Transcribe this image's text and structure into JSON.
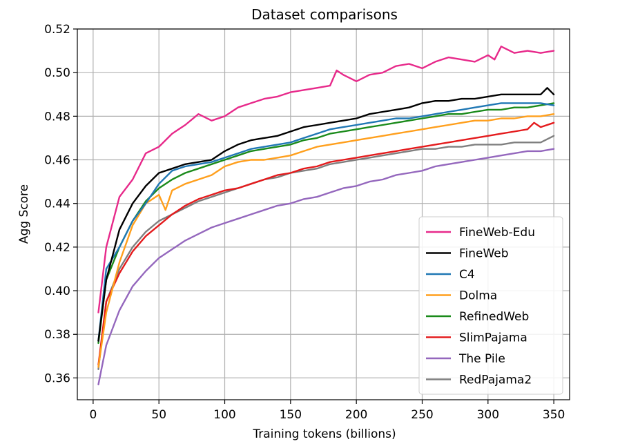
{
  "chart_data": {
    "type": "line",
    "title": "Dataset comparisons",
    "xlabel": "Training tokens (billions)",
    "ylabel": "Agg Score",
    "xlim": [
      -12,
      362
    ],
    "ylim": [
      0.35,
      0.52
    ],
    "xticks": [
      "0",
      "50",
      "100",
      "150",
      "200",
      "250",
      "300",
      "350"
    ],
    "xtick_values": [
      0,
      50,
      100,
      150,
      200,
      250,
      300,
      350
    ],
    "yticks": [
      "0.36",
      "0.38",
      "0.40",
      "0.42",
      "0.44",
      "0.46",
      "0.48",
      "0.50",
      "0.52"
    ],
    "ytick_values": [
      0.36,
      0.38,
      0.4,
      0.42,
      0.44,
      0.46,
      0.48,
      0.5,
      0.52
    ],
    "grid": true,
    "legend_position": "lower-right",
    "series": [
      {
        "name": "FineWeb-Edu",
        "color": "#e7298a",
        "x": [
          4,
          10,
          20,
          30,
          40,
          50,
          60,
          70,
          80,
          90,
          100,
          110,
          120,
          130,
          140,
          150,
          160,
          170,
          180,
          185,
          190,
          200,
          210,
          220,
          230,
          240,
          250,
          260,
          270,
          280,
          290,
          300,
          305,
          310,
          320,
          330,
          340,
          350
        ],
        "y": [
          0.39,
          0.42,
          0.443,
          0.451,
          0.463,
          0.466,
          0.472,
          0.476,
          0.481,
          0.478,
          0.48,
          0.484,
          0.486,
          0.488,
          0.489,
          0.491,
          0.492,
          0.493,
          0.494,
          0.501,
          0.499,
          0.496,
          0.499,
          0.5,
          0.503,
          0.504,
          0.502,
          0.505,
          0.507,
          0.506,
          0.505,
          0.508,
          0.506,
          0.512,
          0.509,
          0.51,
          0.509,
          0.51
        ]
      },
      {
        "name": "FineWeb",
        "color": "#000000",
        "x": [
          4,
          10,
          20,
          30,
          40,
          50,
          60,
          70,
          80,
          90,
          100,
          110,
          120,
          130,
          140,
          150,
          160,
          170,
          180,
          190,
          200,
          210,
          220,
          230,
          240,
          250,
          260,
          270,
          280,
          290,
          300,
          310,
          320,
          330,
          340,
          345,
          350
        ],
        "y": [
          0.377,
          0.405,
          0.428,
          0.44,
          0.448,
          0.454,
          0.456,
          0.458,
          0.459,
          0.46,
          0.464,
          0.467,
          0.469,
          0.47,
          0.471,
          0.473,
          0.475,
          0.476,
          0.477,
          0.478,
          0.479,
          0.481,
          0.482,
          0.483,
          0.484,
          0.486,
          0.487,
          0.487,
          0.488,
          0.488,
          0.489,
          0.49,
          0.49,
          0.49,
          0.49,
          0.493,
          0.49
        ]
      },
      {
        "name": "C4",
        "color": "#1f77b4",
        "x": [
          4,
          10,
          20,
          30,
          40,
          50,
          60,
          70,
          80,
          90,
          100,
          110,
          120,
          130,
          140,
          150,
          160,
          170,
          180,
          190,
          200,
          210,
          220,
          230,
          240,
          250,
          260,
          270,
          280,
          290,
          300,
          310,
          320,
          330,
          340,
          350
        ],
        "y": [
          0.377,
          0.41,
          0.42,
          0.432,
          0.44,
          0.449,
          0.455,
          0.457,
          0.458,
          0.459,
          0.461,
          0.463,
          0.465,
          0.466,
          0.467,
          0.468,
          0.47,
          0.472,
          0.474,
          0.475,
          0.476,
          0.477,
          0.478,
          0.479,
          0.479,
          0.48,
          0.481,
          0.482,
          0.483,
          0.484,
          0.485,
          0.486,
          0.486,
          0.486,
          0.486,
          0.485
        ]
      },
      {
        "name": "Dolma",
        "color": "#ff9f1c",
        "x": [
          4,
          10,
          20,
          30,
          40,
          50,
          55,
          60,
          70,
          80,
          90,
          100,
          110,
          120,
          130,
          140,
          150,
          160,
          170,
          180,
          190,
          200,
          210,
          220,
          230,
          240,
          250,
          260,
          270,
          280,
          290,
          300,
          310,
          320,
          330,
          340,
          350
        ],
        "y": [
          0.365,
          0.39,
          0.413,
          0.43,
          0.44,
          0.444,
          0.437,
          0.446,
          0.449,
          0.451,
          0.453,
          0.457,
          0.459,
          0.46,
          0.46,
          0.461,
          0.462,
          0.464,
          0.466,
          0.467,
          0.468,
          0.469,
          0.47,
          0.471,
          0.472,
          0.473,
          0.474,
          0.475,
          0.476,
          0.477,
          0.478,
          0.478,
          0.479,
          0.479,
          0.48,
          0.48,
          0.481
        ]
      },
      {
        "name": "RefinedWeb",
        "color": "#1a8a1a",
        "x": [
          4,
          10,
          20,
          30,
          40,
          50,
          60,
          70,
          80,
          90,
          100,
          110,
          120,
          130,
          140,
          150,
          160,
          170,
          180,
          190,
          200,
          210,
          220,
          230,
          240,
          250,
          260,
          270,
          280,
          290,
          300,
          310,
          320,
          330,
          340,
          350
        ],
        "y": [
          0.376,
          0.405,
          0.42,
          0.432,
          0.441,
          0.447,
          0.451,
          0.454,
          0.456,
          0.458,
          0.46,
          0.462,
          0.464,
          0.465,
          0.466,
          0.467,
          0.469,
          0.47,
          0.472,
          0.473,
          0.474,
          0.475,
          0.476,
          0.477,
          0.478,
          0.479,
          0.48,
          0.481,
          0.481,
          0.482,
          0.483,
          0.483,
          0.484,
          0.484,
          0.485,
          0.486
        ]
      },
      {
        "name": "SlimPajama",
        "color": "#e41a1c",
        "x": [
          4,
          10,
          20,
          30,
          40,
          50,
          60,
          70,
          80,
          90,
          100,
          110,
          120,
          130,
          140,
          150,
          160,
          170,
          180,
          190,
          200,
          210,
          220,
          230,
          240,
          250,
          260,
          270,
          280,
          290,
          300,
          310,
          320,
          330,
          335,
          340,
          350
        ],
        "y": [
          0.366,
          0.395,
          0.408,
          0.418,
          0.425,
          0.43,
          0.435,
          0.439,
          0.442,
          0.444,
          0.446,
          0.447,
          0.449,
          0.451,
          0.453,
          0.454,
          0.456,
          0.457,
          0.459,
          0.46,
          0.461,
          0.462,
          0.463,
          0.464,
          0.465,
          0.466,
          0.467,
          0.468,
          0.469,
          0.47,
          0.471,
          0.472,
          0.473,
          0.474,
          0.477,
          0.475,
          0.477
        ]
      },
      {
        "name": "The Pile",
        "color": "#9467bd",
        "x": [
          4,
          10,
          20,
          30,
          40,
          50,
          60,
          70,
          80,
          90,
          100,
          110,
          120,
          130,
          140,
          150,
          160,
          170,
          180,
          190,
          200,
          210,
          220,
          230,
          240,
          250,
          260,
          270,
          280,
          290,
          300,
          310,
          320,
          330,
          340,
          350
        ],
        "y": [
          0.357,
          0.375,
          0.391,
          0.402,
          0.409,
          0.415,
          0.419,
          0.423,
          0.426,
          0.429,
          0.431,
          0.433,
          0.435,
          0.437,
          0.439,
          0.44,
          0.442,
          0.443,
          0.445,
          0.447,
          0.448,
          0.45,
          0.451,
          0.453,
          0.454,
          0.455,
          0.457,
          0.458,
          0.459,
          0.46,
          0.461,
          0.462,
          0.463,
          0.464,
          0.464,
          0.465
        ]
      },
      {
        "name": "RedPajama2",
        "color": "#7f7f7f",
        "x": [
          4,
          10,
          20,
          30,
          40,
          50,
          60,
          70,
          80,
          90,
          100,
          110,
          120,
          130,
          140,
          150,
          160,
          170,
          180,
          190,
          200,
          210,
          220,
          230,
          240,
          250,
          260,
          270,
          280,
          290,
          300,
          310,
          320,
          330,
          340,
          350
        ],
        "y": [
          0.364,
          0.395,
          0.41,
          0.42,
          0.427,
          0.432,
          0.435,
          0.438,
          0.441,
          0.443,
          0.445,
          0.447,
          0.449,
          0.451,
          0.452,
          0.454,
          0.455,
          0.456,
          0.458,
          0.459,
          0.46,
          0.461,
          0.462,
          0.463,
          0.464,
          0.465,
          0.465,
          0.466,
          0.466,
          0.467,
          0.467,
          0.467,
          0.468,
          0.468,
          0.468,
          0.471
        ]
      }
    ]
  }
}
